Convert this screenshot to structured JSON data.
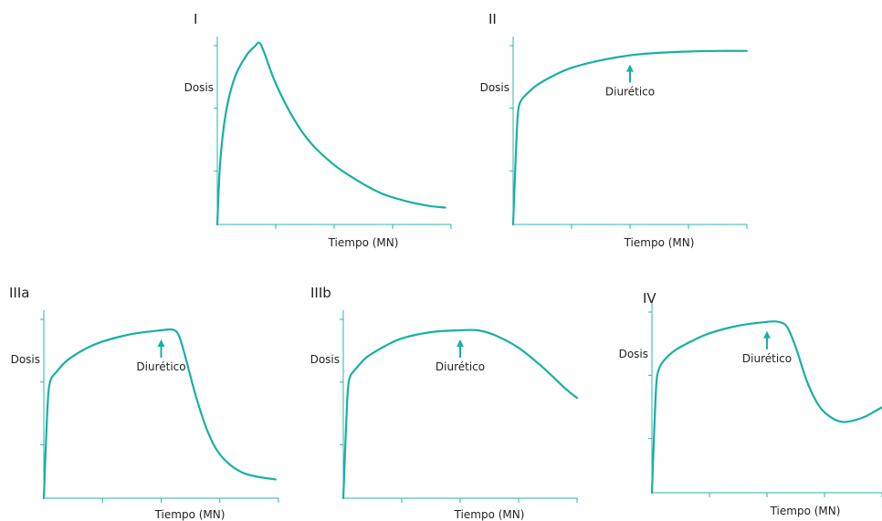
{
  "chart_data": [
    {
      "type": "line",
      "title": "I",
      "xlabel": "Tiempo (MN)",
      "ylabel": "Dosis",
      "xlim": [
        0,
        4
      ],
      "ylim": [
        0,
        3
      ],
      "arrow": null,
      "series": [
        {
          "x": [
            0,
            0.05,
            0.15,
            0.3,
            0.5,
            0.65,
            0.72,
            0.8,
            1.0,
            1.3,
            1.6,
            2.0,
            2.4,
            2.8,
            3.2,
            3.6,
            3.9
          ],
          "y": [
            0,
            1.0,
            1.8,
            2.35,
            2.7,
            2.85,
            2.9,
            2.75,
            2.25,
            1.7,
            1.3,
            0.95,
            0.7,
            0.5,
            0.38,
            0.3,
            0.27
          ]
        }
      ]
    },
    {
      "type": "line",
      "title": "II",
      "xlabel": "Tiempo (MN)",
      "ylabel": "Dosis",
      "xlim": [
        0,
        4
      ],
      "ylim": [
        0,
        3
      ],
      "arrow": {
        "x": 2.0,
        "label": "Diurético"
      },
      "series": [
        {
          "x": [
            0,
            0.05,
            0.08,
            0.12,
            0.2,
            0.4,
            0.7,
            1.0,
            1.5,
            2.0,
            2.5,
            3.0,
            3.5,
            4.0
          ],
          "y": [
            0,
            1.2,
            1.75,
            1.95,
            2.05,
            2.22,
            2.38,
            2.5,
            2.62,
            2.7,
            2.74,
            2.76,
            2.77,
            2.77
          ]
        }
      ]
    },
    {
      "type": "line",
      "title": "IIIa",
      "xlabel": "Tiempo (MN)",
      "ylabel": "Dosis",
      "xlim": [
        0,
        4
      ],
      "ylim": [
        0,
        3
      ],
      "arrow": {
        "x": 2.0,
        "label": "Diurético"
      },
      "series": [
        {
          "x": [
            0,
            0.05,
            0.08,
            0.12,
            0.2,
            0.4,
            0.7,
            1.0,
            1.5,
            2.0,
            2.2,
            2.3,
            2.4,
            2.6,
            2.8,
            3.0,
            3.3,
            3.6,
            3.95
          ],
          "y": [
            0,
            1.2,
            1.7,
            1.9,
            2.0,
            2.2,
            2.38,
            2.5,
            2.62,
            2.68,
            2.69,
            2.6,
            2.3,
            1.6,
            1.05,
            0.7,
            0.45,
            0.35,
            0.3
          ]
        }
      ]
    },
    {
      "type": "line",
      "title": "IIIb",
      "xlabel": "Tiempo (MN)",
      "ylabel": "Dosis",
      "xlim": [
        0,
        4
      ],
      "ylim": [
        0,
        3
      ],
      "arrow": {
        "x": 2.0,
        "label": "Diurético"
      },
      "series": [
        {
          "x": [
            0,
            0.05,
            0.08,
            0.12,
            0.2,
            0.4,
            0.7,
            1.0,
            1.5,
            2.0,
            2.3,
            2.6,
            3.0,
            3.4,
            3.8,
            4.0
          ],
          "y": [
            0,
            1.2,
            1.75,
            1.95,
            2.05,
            2.25,
            2.42,
            2.55,
            2.65,
            2.68,
            2.68,
            2.6,
            2.4,
            2.1,
            1.75,
            1.6
          ]
        }
      ]
    },
    {
      "type": "line",
      "title": "IV",
      "xlabel": "Tiempo (MN)",
      "ylabel": "Dosis",
      "xlim": [
        0,
        4
      ],
      "ylim": [
        0,
        3
      ],
      "arrow": {
        "x": 2.0,
        "label": "Diurético"
      },
      "series": [
        {
          "x": [
            0,
            0.05,
            0.08,
            0.12,
            0.2,
            0.4,
            0.7,
            1.0,
            1.5,
            2.0,
            2.2,
            2.35,
            2.5,
            2.7,
            2.9,
            3.1,
            3.3,
            3.5,
            3.7,
            3.9,
            4.0
          ],
          "y": [
            0,
            1.2,
            1.75,
            1.95,
            2.08,
            2.25,
            2.4,
            2.52,
            2.64,
            2.7,
            2.7,
            2.62,
            2.3,
            1.75,
            1.38,
            1.2,
            1.12,
            1.14,
            1.2,
            1.3,
            1.35
          ]
        }
      ]
    }
  ]
}
